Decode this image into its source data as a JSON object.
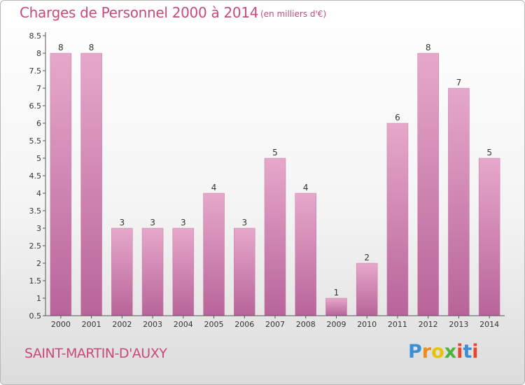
{
  "title": "Charges de Personnel 2000 à 2014",
  "subtitle": "(en milliers d'€)",
  "commune": "SAINT-MARTIN-D'AUXY",
  "logo": {
    "letters": [
      "P",
      "r",
      "o",
      "x",
      "i",
      "t",
      "i"
    ],
    "colors": [
      "#3a8fd6",
      "#f08a1c",
      "#e8c400",
      "#4db33d",
      "#e8452c",
      "#3a8fd6",
      "#e8452c"
    ]
  },
  "colors": {
    "bar": "#d890b8",
    "bar_top": "#e6a8ca",
    "bar_bottom": "#b8649a",
    "accent": "#c8497e",
    "axis": "#555555"
  },
  "chart_data": {
    "type": "bar",
    "title": "Charges de Personnel 2000 à 2014",
    "subtitle": "(en milliers d'€)",
    "categories": [
      "2000",
      "2001",
      "2002",
      "2003",
      "2004",
      "2005",
      "2006",
      "2007",
      "2008",
      "2009",
      "2010",
      "2011",
      "2012",
      "2013",
      "2014"
    ],
    "values": [
      8,
      8,
      3,
      3,
      3,
      4,
      3,
      5,
      4,
      1,
      2,
      6,
      8,
      7,
      5
    ],
    "yticks": [
      "0.5",
      "1",
      "1.5",
      "2",
      "2.5",
      "3",
      "3.5",
      "4",
      "4.5",
      "5",
      "5.5",
      "6",
      "6.5",
      "7",
      "7.5",
      "8",
      "8.5"
    ],
    "ylim": [
      0.5,
      8.5
    ],
    "grid": false,
    "data_labels": true
  }
}
